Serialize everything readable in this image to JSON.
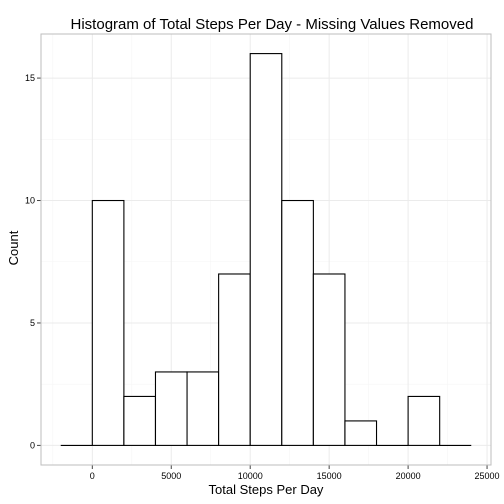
{
  "chart_data": {
    "type": "bar",
    "title": "Histogram of Total Steps Per Day - Missing Values Removed",
    "xlabel": "Total Steps Per Day",
    "ylabel": "Count",
    "bin_width": 2000,
    "bins": [
      {
        "start": -2000,
        "end": 0,
        "count": 0
      },
      {
        "start": 0,
        "end": 2000,
        "count": 10
      },
      {
        "start": 2000,
        "end": 4000,
        "count": 2
      },
      {
        "start": 4000,
        "end": 6000,
        "count": 3
      },
      {
        "start": 6000,
        "end": 8000,
        "count": 3
      },
      {
        "start": 8000,
        "end": 10000,
        "count": 7
      },
      {
        "start": 10000,
        "end": 12000,
        "count": 16
      },
      {
        "start": 12000,
        "end": 14000,
        "count": 10
      },
      {
        "start": 14000,
        "end": 16000,
        "count": 7
      },
      {
        "start": 16000,
        "end": 18000,
        "count": 1
      },
      {
        "start": 18000,
        "end": 20000,
        "count": 0
      },
      {
        "start": 20000,
        "end": 22000,
        "count": 2
      },
      {
        "start": 22000,
        "end": 24000,
        "count": 0
      }
    ],
    "xlim": [
      -3250,
      25250
    ],
    "ylim": [
      -0.8,
      16.8
    ],
    "x_ticks": [
      0,
      5000,
      10000,
      15000,
      20000,
      25000
    ],
    "x_tick_labels": [
      "0",
      "5000",
      "10000",
      "15000",
      "20000",
      "25000"
    ],
    "y_ticks": [
      0,
      5,
      10,
      15
    ],
    "y_tick_labels": [
      "0",
      "5",
      "10",
      "15"
    ],
    "grid": true,
    "colors": {
      "bar_fill": "#ffffff",
      "bar_stroke": "#000000",
      "grid_major": "#ebebeb",
      "grid_minor": "#f5f5f5",
      "panel_border": "#bdbdbd"
    }
  }
}
